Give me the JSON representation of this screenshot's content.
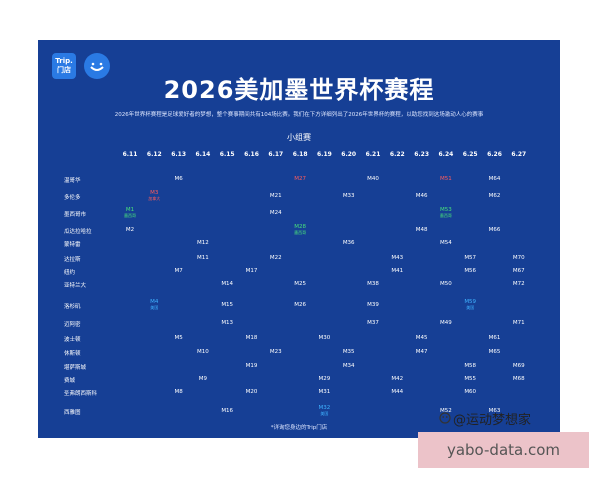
{
  "logo": {
    "text_line1": "Trip.",
    "text_line2": "门店"
  },
  "title": "2026美加墨世界杯赛程",
  "subtitle": "2026年世界杯赛程是足球爱好者的梦想，整个赛事期间共有104场比赛。我们在下方详细列出了2026年世界杯的赛程，以助您找到这场激动人心的赛事",
  "section_title": "小组赛",
  "dates": [
    "6.11",
    "6.12",
    "6.13",
    "6.14",
    "6.15",
    "6.16",
    "6.17",
    "6.18",
    "6.19",
    "6.20",
    "6.21",
    "6.22",
    "6.23",
    "6.24",
    "6.25",
    "6.26",
    "6.27"
  ],
  "cities": [
    {
      "name": "温哥华",
      "matches": [
        {
          "d": 2,
          "m": "M6"
        },
        {
          "d": 7,
          "m": "M27",
          "color": "red"
        },
        {
          "d": 10,
          "m": "M40"
        },
        {
          "d": 13,
          "m": "M51",
          "color": "red"
        },
        {
          "d": 15,
          "m": "M64"
        }
      ]
    },
    {
      "name": "多伦多",
      "matches": [
        {
          "d": 1,
          "m": "M3",
          "color": "red",
          "host": "加拿大"
        },
        {
          "d": 6,
          "m": "M21"
        },
        {
          "d": 9,
          "m": "M33"
        },
        {
          "d": 12,
          "m": "M46"
        },
        {
          "d": 15,
          "m": "M62"
        }
      ]
    },
    {
      "name": "墨西哥市",
      "matches": [
        {
          "d": 0,
          "m": "M1",
          "color": "green",
          "host": "墨西哥"
        },
        {
          "d": 6,
          "m": "M24"
        },
        {
          "d": 13,
          "m": "M53",
          "color": "green",
          "host": "墨西哥"
        }
      ]
    },
    {
      "name": "瓜达拉哈拉",
      "matches": [
        {
          "d": 0,
          "m": "M2"
        },
        {
          "d": 7,
          "m": "M28",
          "color": "green",
          "host": "墨西哥"
        },
        {
          "d": 12,
          "m": "M48"
        },
        {
          "d": 15,
          "m": "M66"
        }
      ]
    },
    {
      "name": "蒙特雷",
      "matches": [
        {
          "d": 3,
          "m": "M12"
        },
        {
          "d": 9,
          "m": "M36"
        },
        {
          "d": 13,
          "m": "M54"
        }
      ]
    },
    {
      "name": "达拉斯",
      "matches": [
        {
          "d": 3,
          "m": "M11"
        },
        {
          "d": 6,
          "m": "M22"
        },
        {
          "d": 11,
          "m": "M43"
        },
        {
          "d": 14,
          "m": "M57"
        },
        {
          "d": 16,
          "m": "M70"
        }
      ]
    },
    {
      "name": "纽约",
      "matches": [
        {
          "d": 2,
          "m": "M7"
        },
        {
          "d": 5,
          "m": "M17"
        },
        {
          "d": 11,
          "m": "M41"
        },
        {
          "d": 14,
          "m": "M56"
        },
        {
          "d": 16,
          "m": "M67"
        }
      ]
    },
    {
      "name": "亚特兰大",
      "matches": [
        {
          "d": 4,
          "m": "M14"
        },
        {
          "d": 7,
          "m": "M25"
        },
        {
          "d": 10,
          "m": "M38"
        },
        {
          "d": 13,
          "m": "M50"
        },
        {
          "d": 16,
          "m": "M72"
        }
      ]
    },
    {
      "name": "洛杉矶",
      "matches": [
        {
          "d": 1,
          "m": "M4",
          "color": "cyan",
          "host": "美国"
        },
        {
          "d": 4,
          "m": "M15"
        },
        {
          "d": 7,
          "m": "M26"
        },
        {
          "d": 10,
          "m": "M39"
        },
        {
          "d": 14,
          "m": "M59",
          "color": "cyan",
          "host": "美国"
        }
      ]
    },
    {
      "name": "迈阿密",
      "matches": [
        {
          "d": 4,
          "m": "M13"
        },
        {
          "d": 10,
          "m": "M37"
        },
        {
          "d": 13,
          "m": "M49"
        },
        {
          "d": 16,
          "m": "M71"
        }
      ]
    },
    {
      "name": "波士顿",
      "matches": [
        {
          "d": 2,
          "m": "M5"
        },
        {
          "d": 5,
          "m": "M18"
        },
        {
          "d": 8,
          "m": "M30"
        },
        {
          "d": 12,
          "m": "M45"
        },
        {
          "d": 15,
          "m": "M61"
        }
      ]
    },
    {
      "name": "休斯顿",
      "matches": [
        {
          "d": 3,
          "m": "M10"
        },
        {
          "d": 6,
          "m": "M23"
        },
        {
          "d": 9,
          "m": "M35"
        },
        {
          "d": 12,
          "m": "M47"
        },
        {
          "d": 15,
          "m": "M65"
        }
      ]
    },
    {
      "name": "堪萨斯城",
      "matches": [
        {
          "d": 5,
          "m": "M19"
        },
        {
          "d": 9,
          "m": "M34"
        },
        {
          "d": 14,
          "m": "M58"
        },
        {
          "d": 16,
          "m": "M69"
        }
      ]
    },
    {
      "name": "费城",
      "matches": [
        {
          "d": 3,
          "m": "M9"
        },
        {
          "d": 8,
          "m": "M29"
        },
        {
          "d": 11,
          "m": "M42"
        },
        {
          "d": 14,
          "m": "M55"
        },
        {
          "d": 16,
          "m": "M68"
        }
      ]
    },
    {
      "name": "圣弗朗西斯科",
      "matches": [
        {
          "d": 2,
          "m": "M8"
        },
        {
          "d": 5,
          "m": "M20"
        },
        {
          "d": 8,
          "m": "M31"
        },
        {
          "d": 11,
          "m": "M44"
        },
        {
          "d": 14,
          "m": "M60"
        }
      ]
    },
    {
      "name": "西雅图",
      "matches": [
        {
          "d": 4,
          "m": "M16"
        },
        {
          "d": 8,
          "m": "M32",
          "color": "cyan",
          "host": "美国"
        },
        {
          "d": 13,
          "m": "M52"
        },
        {
          "d": 15,
          "m": "M63"
        }
      ]
    }
  ],
  "footnote": "*详询您身边的Trip门店",
  "watermark": "@运动梦想家",
  "url": "yabo-data.com",
  "colors": {
    "background": "#163f95",
    "host_canada": "#ff5b5b",
    "host_mexico": "#47e07b",
    "host_usa": "#3fb2ff"
  }
}
